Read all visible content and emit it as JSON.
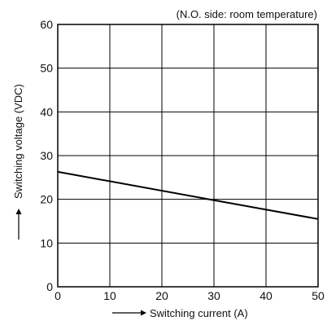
{
  "chart_data": {
    "type": "line",
    "title": "",
    "annotation": "(N.O. side: room temperature)",
    "xlabel": "Switching current (A)",
    "ylabel": "Switching voltage (VDC)",
    "xlim": [
      0,
      50
    ],
    "ylim": [
      0,
      60
    ],
    "xticks": [
      0,
      10,
      20,
      30,
      40,
      50
    ],
    "yticks": [
      0,
      10,
      20,
      30,
      40,
      50,
      60
    ],
    "grid": true,
    "series": [
      {
        "x": [
          0,
          30,
          50
        ],
        "y": [
          26.3,
          19.8,
          15.5
        ]
      }
    ],
    "colors": {
      "line": "#000000",
      "grid": "#000000",
      "frame": "#000000"
    }
  }
}
